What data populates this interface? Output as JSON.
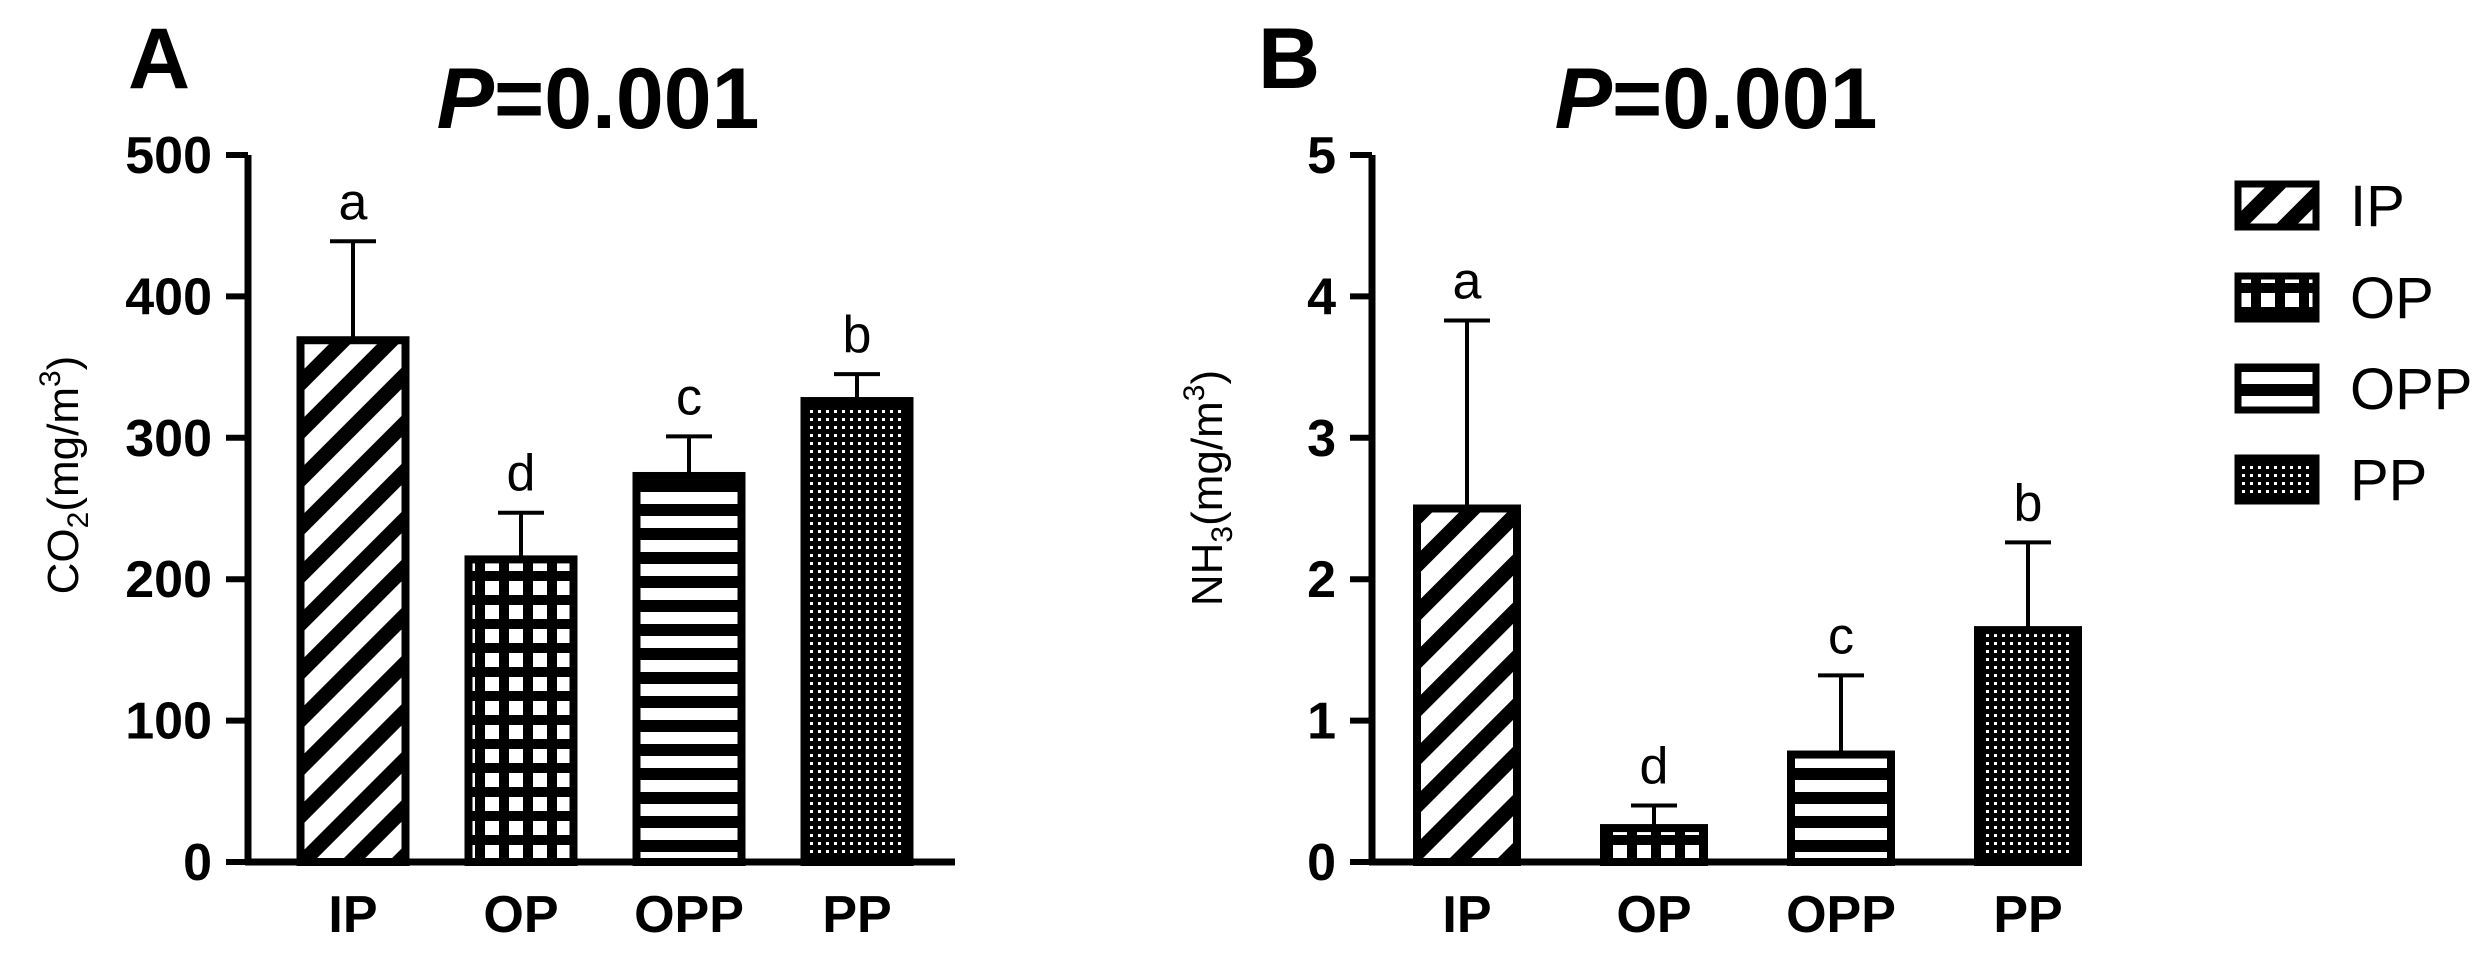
{
  "legend": {
    "items": [
      {
        "label": "IP",
        "pattern": "diag"
      },
      {
        "label": "OP",
        "pattern": "grid"
      },
      {
        "label": "OPP",
        "pattern": "hlines"
      },
      {
        "label": "PP",
        "pattern": "dots"
      }
    ]
  },
  "chart_data": [
    {
      "type": "bar",
      "panel": "A",
      "title_italic": "P",
      "title_rest": "=0.001",
      "ylabel_main": "CO",
      "ylabel_sub": "2",
      "ylabel_unit": "(mg/m",
      "ylabel_sup": "3",
      "ylabel_close": ")",
      "categories": [
        "IP",
        "OP",
        "OPP",
        "PP"
      ],
      "values": [
        369,
        214,
        273,
        326
      ],
      "errors": [
        70,
        33,
        28,
        19
      ],
      "significance": [
        "a",
        "d",
        "c",
        "b"
      ],
      "ylim": [
        0,
        500
      ],
      "yticks": [
        0,
        100,
        200,
        300,
        400,
        500
      ],
      "ytick_labels": [
        "0",
        "100",
        "200",
        "300",
        "400",
        "500"
      ],
      "grid": false
    },
    {
      "type": "bar",
      "panel": "B",
      "title_italic": "P",
      "title_rest": "=0.001",
      "ylabel_main": "NH",
      "ylabel_sub": "3",
      "ylabel_unit": "(mg/m",
      "ylabel_sup": "3",
      "ylabel_close": ")",
      "categories": [
        "IP",
        "OP",
        "OPP",
        "PP"
      ],
      "values": [
        2.5,
        0.24,
        0.76,
        1.64
      ],
      "errors": [
        1.33,
        0.16,
        0.56,
        0.62
      ],
      "significance": [
        "a",
        "d",
        "c",
        "b"
      ],
      "ylim": [
        0,
        5
      ],
      "yticks": [
        0,
        1,
        2,
        3,
        4,
        5
      ],
      "ytick_labels": [
        "0",
        "1",
        "2",
        "3",
        "4",
        "5"
      ],
      "grid": false
    }
  ]
}
